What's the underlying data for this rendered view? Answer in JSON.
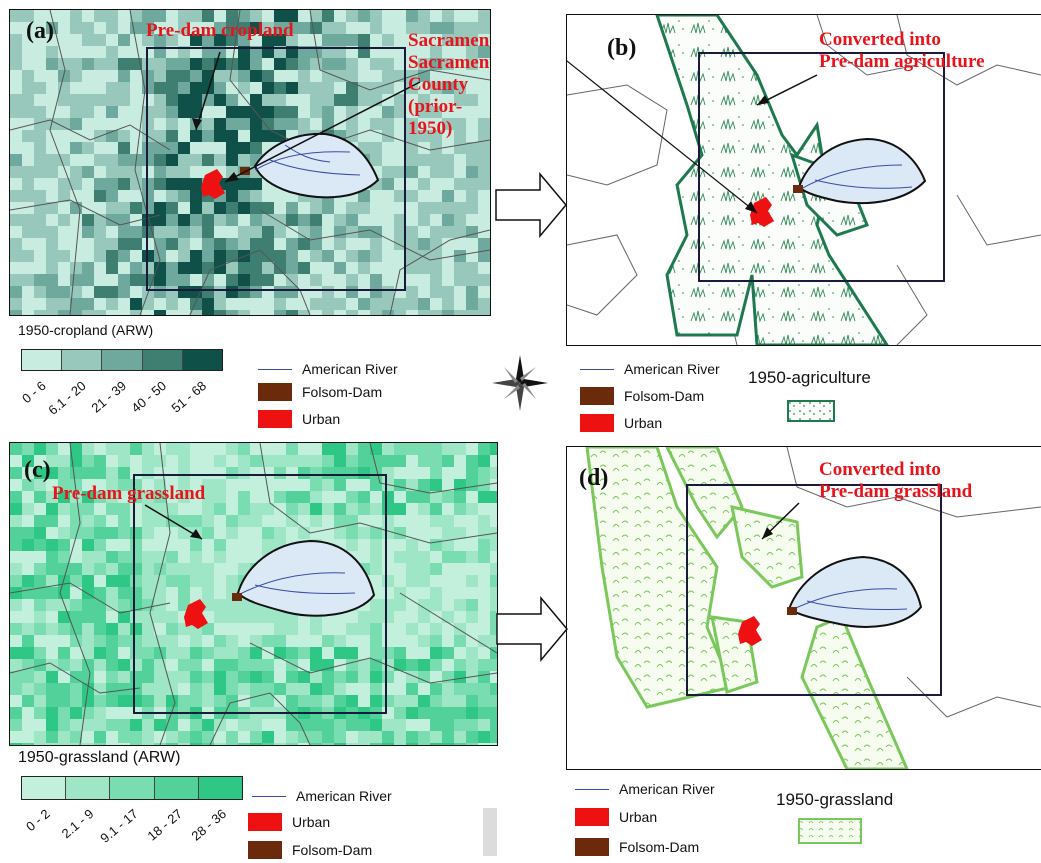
{
  "panels": {
    "a": {
      "label": "(a)",
      "annot1": "Pre-dam cropland",
      "annot2_lines": [
        "Sacramento,",
        "Sacramento",
        "County",
        "(prior-1950)"
      ]
    },
    "b": {
      "label": "(b)",
      "annot_lines": [
        "Converted into",
        "Pre-dam agriculture"
      ]
    },
    "c": {
      "label": "(c)",
      "annot": "Pre-dam grassland"
    },
    "d": {
      "label": "(d)",
      "annot_lines": [
        "Converted into",
        "Pre-dam grassland"
      ]
    }
  },
  "legends": {
    "cropland": {
      "title": "1950-cropland (ARW)",
      "classes": [
        "0 - 6",
        "6.1 - 20",
        "21 - 39",
        "40 - 50",
        "51 - 68"
      ],
      "colors": [
        "#c9ece0",
        "#98c8bb",
        "#6fa89c",
        "#3f7f72",
        "#0f5148"
      ]
    },
    "grassland": {
      "title": "1950-grassland (ARW)",
      "classes": [
        "0 - 2",
        "2.1 - 9",
        "9.1 - 17",
        "18 - 27",
        "28 - 36"
      ],
      "colors": [
        "#c2f0dc",
        "#9fe6c6",
        "#7adcb1",
        "#52d19b",
        "#2fc786"
      ]
    },
    "top_symbols": {
      "river": "American River",
      "dam": "Folsom-Dam",
      "urban": "Urban"
    },
    "top_right": {
      "title": "1950-agriculture"
    },
    "bottom_symbols": {
      "river": "American River",
      "urban": "Urban",
      "dam": "Folsom-Dam"
    },
    "bottom_right": {
      "symbols_river": "American River",
      "symbols_urban": "Urban",
      "symbols_dam": "Folsom-Dam",
      "title": "1950-grassland"
    }
  },
  "colors": {
    "river": "#3a4aa8",
    "dam": "#6b2a0c",
    "urban": "#ee1111",
    "agri_outline": "#1e7a4e",
    "grass_outline": "#7ac85a",
    "annotation": "#e8141b"
  },
  "icons": {
    "compass": "compass-rose-icon",
    "arrow": "right-block-arrow-icon"
  }
}
